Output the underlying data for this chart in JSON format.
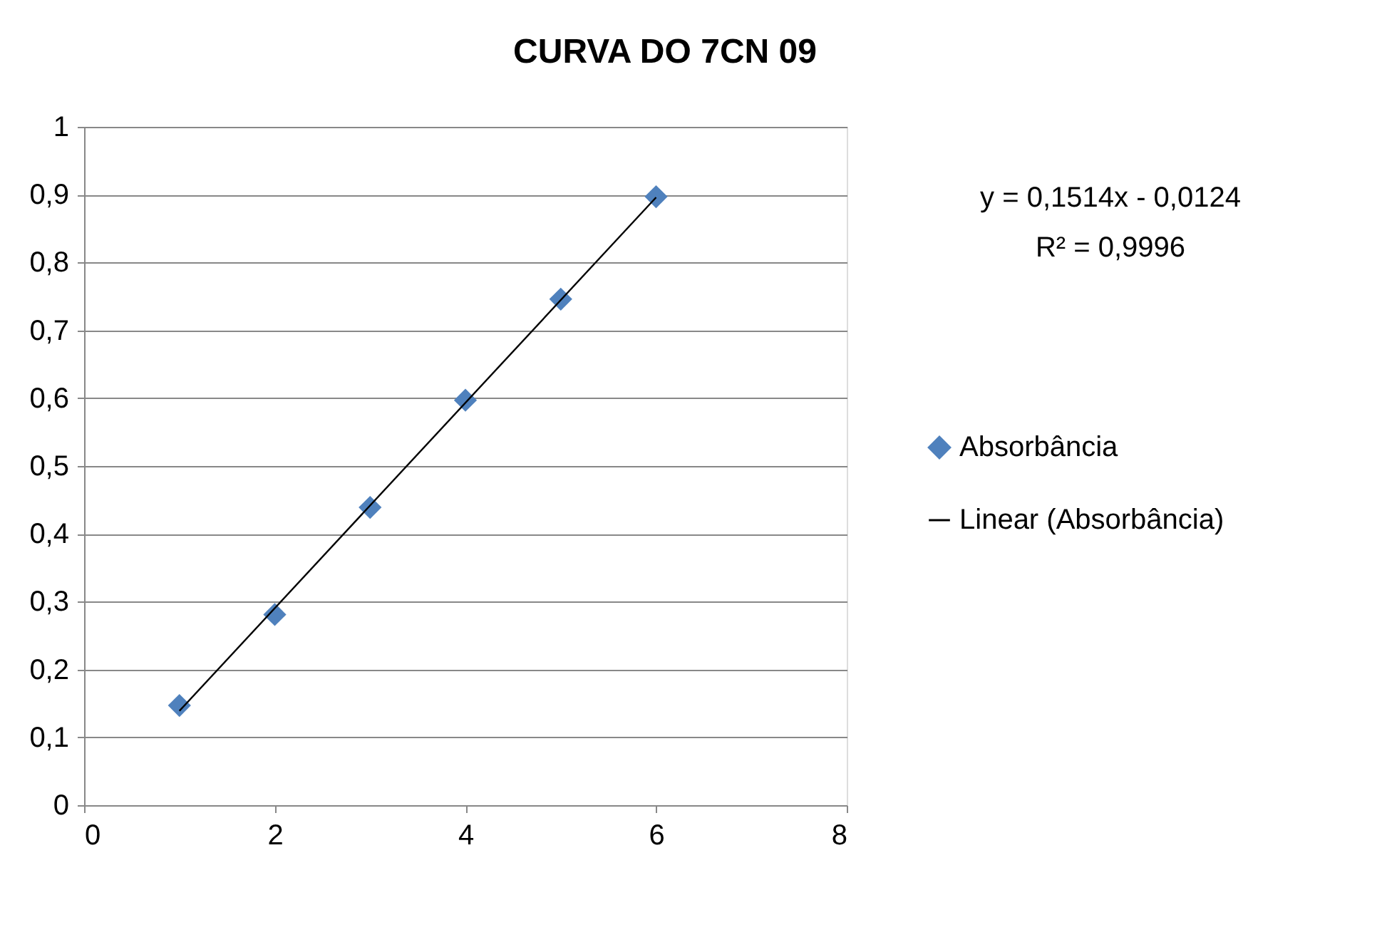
{
  "chart_data": {
    "type": "scatter",
    "title": "CURVA DO 7CN 09",
    "annotations": [
      "y = 0,1514x - 0,0124",
      "R² = 0,9996"
    ],
    "x": [
      1,
      2,
      3,
      4,
      5,
      6
    ],
    "series": [
      {
        "name": "Absorbância",
        "color": "#4f81bd",
        "marker": "diamond",
        "values": [
          0.147,
          0.281,
          0.439,
          0.597,
          0.746,
          0.897
        ]
      },
      {
        "name": "Linear (Absorbância)",
        "type": "line",
        "color": "#000000",
        "x": [
          1,
          6
        ],
        "values": [
          0.139,
          0.896
        ],
        "line_style": "solid"
      }
    ],
    "xlim": [
      0,
      8
    ],
    "xticks": [
      0,
      2,
      4,
      6,
      8
    ],
    "ylim": [
      0,
      1
    ],
    "yticks": [
      0,
      {
        "value": 0.1,
        "label": "0,1"
      },
      {
        "value": 0.2,
        "label": "0,2"
      },
      {
        "value": 0.3,
        "label": "0,3"
      },
      {
        "value": 0.4,
        "label": "0,4"
      },
      {
        "value": 0.5,
        "label": "0,5"
      },
      {
        "value": 0.6,
        "label": "0,6"
      },
      {
        "value": 0.7,
        "label": "0,7"
      },
      {
        "value": 0.8,
        "label": "0,8"
      },
      {
        "value": 0.9,
        "label": "0,9"
      },
      1
    ],
    "grid": "y",
    "legend": "right"
  }
}
